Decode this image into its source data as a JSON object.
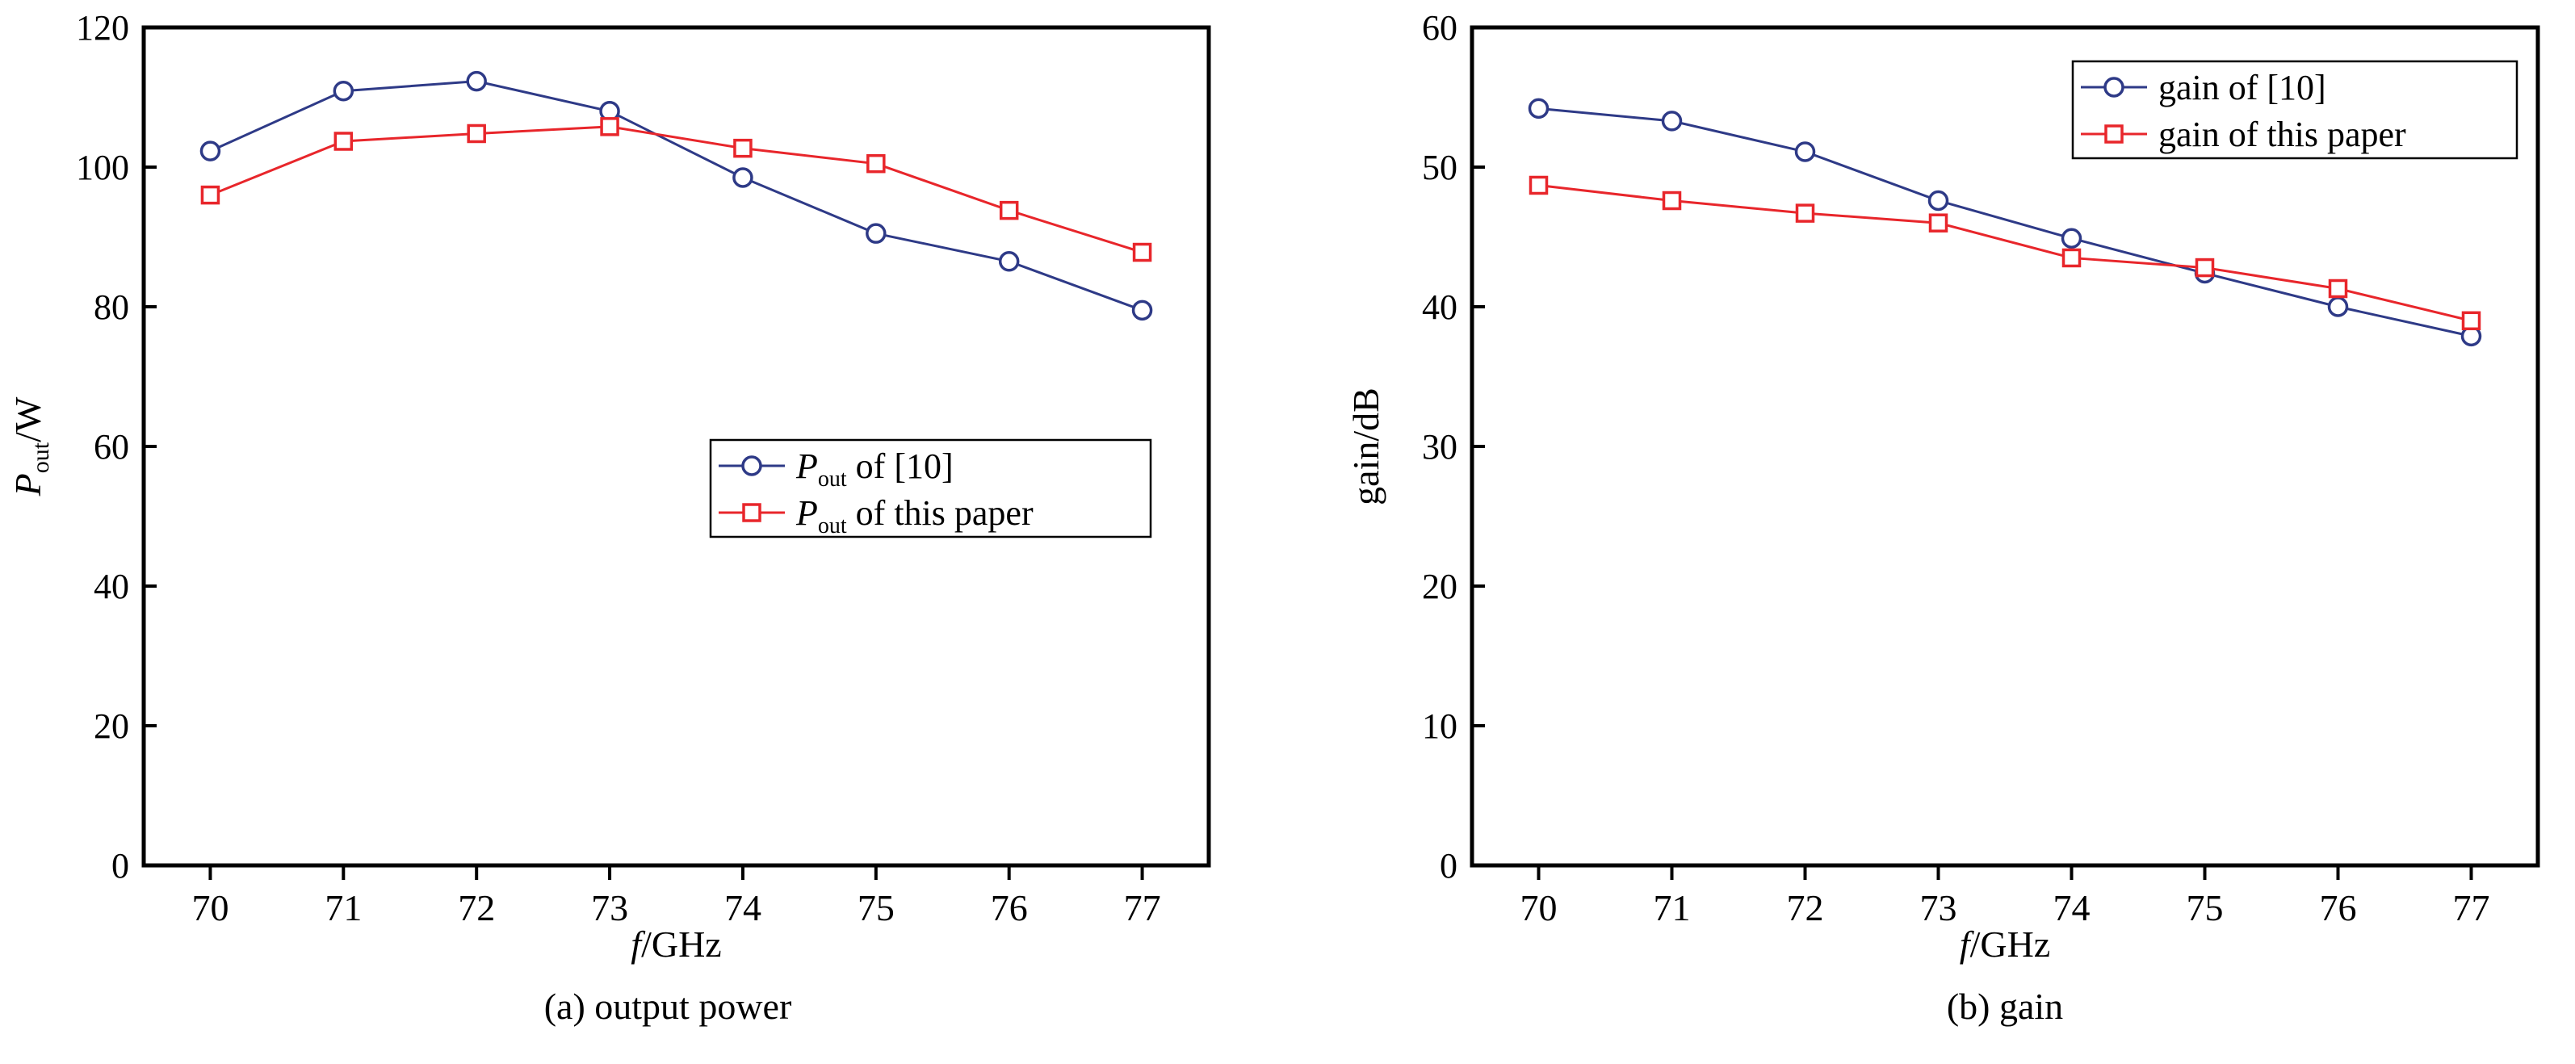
{
  "chart_data": [
    {
      "type": "line",
      "caption": "(a) output power",
      "xlabel": {
        "italic": "f",
        "rest": "/GHz"
      },
      "ylabel": {
        "main": "P",
        "sub": "out",
        "rest": "/W"
      },
      "x": [
        70,
        71,
        72,
        73,
        74,
        75,
        76,
        77
      ],
      "xlim": [
        69.5,
        77.5
      ],
      "ylim": [
        0,
        120
      ],
      "yticks": [
        0,
        20,
        40,
        60,
        80,
        100,
        120
      ],
      "grid": false,
      "legend_position": "center-right",
      "series": [
        {
          "name": "P_out of [10]",
          "legend": {
            "main": "P",
            "sub": "out",
            "rest": " of [10]"
          },
          "color": "#2e3a87",
          "marker": "circle",
          "values": [
            102.3,
            110.9,
            112.3,
            108.0,
            98.5,
            90.5,
            86.5,
            79.5
          ]
        },
        {
          "name": "P_out of this paper",
          "legend": {
            "main": "P",
            "sub": "out",
            "rest": " of this paper"
          },
          "color": "#e8262b",
          "marker": "square",
          "values": [
            96.0,
            103.7,
            104.8,
            105.8,
            102.7,
            100.5,
            93.8,
            87.8
          ]
        }
      ]
    },
    {
      "type": "line",
      "caption": "(b) gain",
      "xlabel": {
        "italic": "f",
        "rest": "/GHz"
      },
      "ylabel": {
        "main": "gain/dB",
        "sub": "",
        "rest": ""
      },
      "x": [
        70,
        71,
        72,
        73,
        74,
        75,
        76,
        77
      ],
      "xlim": [
        69.5,
        77.5
      ],
      "ylim": [
        0,
        60
      ],
      "yticks": [
        0,
        10,
        20,
        30,
        40,
        50,
        60
      ],
      "grid": false,
      "legend_position": "top-right",
      "series": [
        {
          "name": "gain of [10]",
          "legend": {
            "main": "gain of [10]",
            "sub": "",
            "rest": ""
          },
          "color": "#2e3a87",
          "marker": "circle",
          "values": [
            54.2,
            53.3,
            51.1,
            47.6,
            44.9,
            42.4,
            40.0,
            37.9
          ]
        },
        {
          "name": "gain of this paper",
          "legend": {
            "main": "gain of this paper",
            "sub": "",
            "rest": ""
          },
          "color": "#e8262b",
          "marker": "square",
          "values": [
            48.7,
            47.6,
            46.7,
            46.0,
            43.5,
            42.8,
            41.3,
            39.0
          ]
        }
      ]
    }
  ]
}
